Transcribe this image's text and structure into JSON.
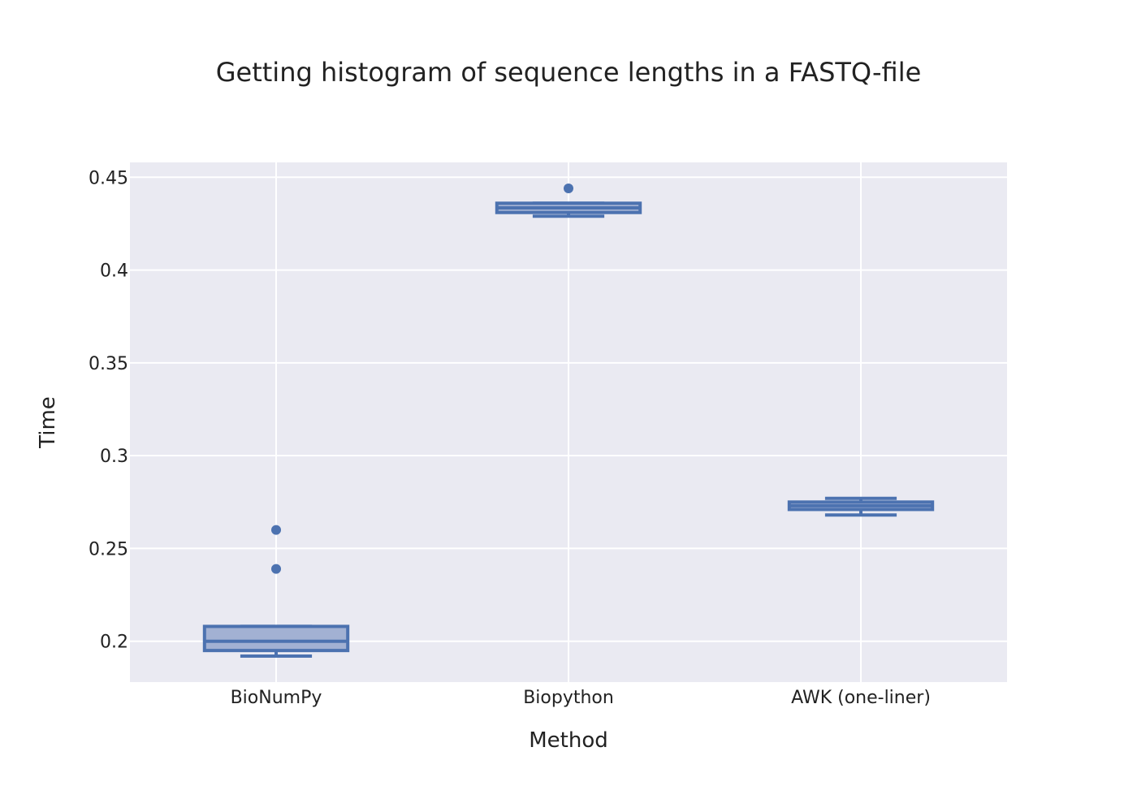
{
  "chart_data": {
    "type": "box",
    "title": "Getting histogram of sequence lengths in a FASTQ-file",
    "xlabel": "Method",
    "ylabel": "Time",
    "categories": [
      "BioNumPy",
      "Biopython",
      "AWK (one-liner)"
    ],
    "yticks": [
      0.2,
      0.25,
      0.3,
      0.35,
      0.4,
      0.45
    ],
    "ytick_labels": [
      "0.2",
      "0.25",
      "0.3",
      "0.35",
      "0.4",
      "0.45"
    ],
    "ylim": [
      0.178,
      0.458
    ],
    "grid": true,
    "boxes": [
      {
        "category": "BioNumPy",
        "whisker_low": 0.192,
        "q1": 0.195,
        "median": 0.2,
        "q3": 0.208,
        "whisker_high": 0.208,
        "outliers": [
          0.239,
          0.26
        ]
      },
      {
        "category": "Biopython",
        "whisker_low": 0.429,
        "q1": 0.431,
        "median": 0.4335,
        "q3": 0.436,
        "whisker_high": 0.436,
        "outliers": [
          0.444
        ]
      },
      {
        "category": "AWK (one-liner)",
        "whisker_low": 0.268,
        "q1": 0.271,
        "median": 0.273,
        "q3": 0.275,
        "whisker_high": 0.277,
        "outliers": []
      }
    ],
    "colors": {
      "box_line": "#4c72b0",
      "box_fill": "#a2b1d3",
      "plot_background": "#eaeaf2",
      "grid": "#ffffff"
    }
  }
}
